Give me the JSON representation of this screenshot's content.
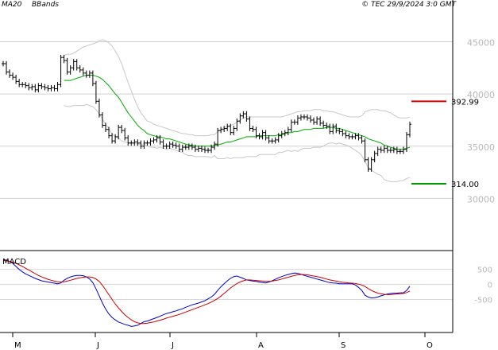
{
  "header": {
    "ma_label": "MA20",
    "bb_label": "BBands",
    "copyright": "© TEC 29/9/2024 3:0 GMT"
  },
  "chart_data": [
    {
      "type": "line",
      "subtype": "ohlc-bar-price-chart",
      "xlabel": "",
      "ylabel": "",
      "ylim": [
        25000,
        49000
      ],
      "y_ticks": [
        "30000",
        "35000",
        "40000",
        "45000"
      ],
      "x_ticks": [
        "M",
        "J",
        "J",
        "A",
        "S",
        "O"
      ],
      "grid": true,
      "horizontal_levels": [
        {
          "label": "392.99",
          "value": 39299,
          "color": "#cc0000"
        },
        {
          "label": "314.00",
          "value": 31400,
          "color": "#009900"
        }
      ],
      "x": [
        0,
        1,
        2,
        3,
        4,
        5,
        6,
        7,
        8,
        9,
        10,
        11,
        12,
        13,
        14,
        15,
        16,
        17,
        18,
        19,
        20,
        21,
        22,
        23,
        24,
        25,
        26,
        27,
        28,
        29,
        30,
        31,
        32,
        33,
        34,
        35,
        36,
        37,
        38,
        39,
        40,
        41,
        42,
        43,
        44,
        45,
        46,
        47,
        48,
        49,
        50,
        51,
        52,
        53,
        54,
        55,
        56,
        57,
        58,
        59,
        60,
        61,
        62,
        63,
        64,
        65,
        66,
        67,
        68,
        69,
        70,
        71,
        72,
        73,
        74,
        75,
        76,
        77,
        78,
        79,
        80,
        81,
        82,
        83,
        84,
        85,
        86,
        87,
        88,
        89,
        90,
        91,
        92,
        93,
        94,
        95,
        96,
        97,
        98,
        99,
        100,
        101,
        102,
        103,
        104,
        105,
        106,
        107,
        108,
        109,
        110,
        111,
        112,
        113,
        114,
        115,
        116,
        117,
        118,
        119,
        120,
        121,
        122,
        123,
        124,
        125,
        126,
        127
      ],
      "close": [
        42900,
        42100,
        41800,
        41600,
        41200,
        40900,
        40900,
        40800,
        40600,
        40700,
        40400,
        40800,
        40700,
        40600,
        40500,
        40600,
        40500,
        40900,
        43500,
        43200,
        42100,
        42500,
        43100,
        42500,
        42300,
        42000,
        41800,
        42000,
        41000,
        39300,
        38000,
        37000,
        36600,
        36000,
        35500,
        35900,
        36800,
        36500,
        35800,
        35300,
        35300,
        35400,
        35300,
        35000,
        35300,
        35300,
        35500,
        35600,
        35800,
        35400,
        35000,
        35000,
        35200,
        35100,
        35000,
        34700,
        34900,
        34900,
        35000,
        34900,
        34700,
        34800,
        34700,
        34600,
        34600,
        34900,
        35200,
        36500,
        36600,
        36700,
        36900,
        36300,
        36700,
        37400,
        37900,
        38100,
        37600,
        36700,
        36600,
        36000,
        35900,
        36300,
        35800,
        35500,
        35500,
        35600,
        36000,
        36200,
        36300,
        36600,
        37300,
        37300,
        37700,
        37800,
        37800,
        37700,
        37500,
        37300,
        37600,
        37200,
        37000,
        36900,
        36400,
        36900,
        36500,
        36400,
        36200,
        36000,
        35900,
        35900,
        36000,
        35800,
        35500,
        33700,
        32800,
        33700,
        34300,
        34700,
        34600,
        34800,
        34600,
        34600,
        34700,
        34500,
        34500,
        34700,
        36100,
        37100
      ],
      "series": [
        {
          "name": "MA20",
          "color": "#00aa00",
          "values": [
            null,
            null,
            null,
            null,
            null,
            null,
            null,
            null,
            null,
            null,
            null,
            null,
            null,
            null,
            null,
            null,
            null,
            null,
            null,
            41300,
            41300,
            41300,
            41400,
            41500,
            41600,
            41700,
            41800,
            41800,
            41800,
            41700,
            41600,
            41400,
            41100,
            40800,
            40400,
            40000,
            39700,
            39200,
            38700,
            38200,
            37800,
            37400,
            37000,
            36700,
            36500,
            36200,
            36100,
            36000,
            35900,
            35900,
            35800,
            35700,
            35700,
            35600,
            35500,
            35400,
            35300,
            35200,
            35100,
            35100,
            35000,
            35000,
            35000,
            35000,
            35000,
            35000,
            35100,
            35100,
            35200,
            35300,
            35400,
            35400,
            35500,
            35600,
            35700,
            35800,
            35900,
            35900,
            35900,
            35900,
            36000,
            36000,
            36000,
            36000,
            36000,
            36000,
            36100,
            36100,
            36200,
            36300,
            36300,
            36400,
            36400,
            36500,
            36600,
            36600,
            36600,
            36700,
            36700,
            36700,
            36700,
            36800,
            36800,
            36800,
            36700,
            36700,
            36600,
            36500,
            36400,
            36300,
            36200,
            36100,
            36000,
            35900,
            35700,
            35600,
            35500,
            35400,
            35300,
            35100,
            35000,
            34900,
            34800,
            34700,
            34700,
            34700,
            34800,
            34900
          ]
        },
        {
          "name": "BBands",
          "color": "#c8c8c8",
          "values": [
            null,
            null,
            null,
            null,
            null,
            null,
            null,
            null,
            null,
            null,
            null,
            null,
            null,
            null,
            null,
            null,
            null,
            null,
            null,
            43700,
            43800,
            43800,
            43900,
            44100,
            44300,
            44500,
            44600,
            44700,
            44800,
            44900,
            45100,
            45200,
            45100,
            44900,
            44600,
            44100,
            43600,
            42900,
            42000,
            41100,
            40300,
            39500,
            38800,
            38200,
            37800,
            37400,
            37300,
            37100,
            37000,
            36900,
            36800,
            36700,
            36600,
            36500,
            36400,
            36300,
            36200,
            36200,
            36100,
            36100,
            36000,
            36000,
            36000,
            36000,
            36000,
            36100,
            36100,
            36400,
            36600,
            36800,
            36900,
            37000,
            37100,
            37300,
            37500,
            37700,
            37800,
            37800,
            37800,
            37800,
            37800,
            37800,
            37800,
            37800,
            37800,
            37800,
            37800,
            37800,
            37900,
            38000,
            38100,
            38200,
            38300,
            38300,
            38400,
            38400,
            38400,
            38500,
            38500,
            38500,
            38400,
            38400,
            38300,
            38300,
            38200,
            38100,
            38000,
            37900,
            37800,
            37800,
            37800,
            37800,
            37900,
            38300,
            38400,
            38500,
            38500,
            38500,
            38400,
            38400,
            38300,
            38200,
            38000,
            37800,
            37700,
            37700,
            37700,
            37800
          ]
        },
        {
          "name": "BBands",
          "color": "#c8c8c8",
          "values": [
            null,
            null,
            null,
            null,
            null,
            null,
            null,
            null,
            null,
            null,
            null,
            null,
            null,
            null,
            null,
            null,
            null,
            null,
            null,
            38900,
            38800,
            38800,
            38900,
            38900,
            38900,
            38900,
            39000,
            38900,
            38800,
            38500,
            38100,
            37600,
            37100,
            36700,
            36200,
            35900,
            35800,
            35500,
            35400,
            35300,
            35300,
            35300,
            35200,
            35200,
            35200,
            35000,
            34900,
            34900,
            34800,
            34900,
            34800,
            34700,
            34800,
            34700,
            34600,
            34500,
            34400,
            34200,
            34100,
            34100,
            34000,
            34000,
            34000,
            34000,
            34000,
            33900,
            34100,
            33800,
            33800,
            33800,
            33900,
            33800,
            33900,
            33900,
            33900,
            33900,
            34000,
            34000,
            34000,
            34000,
            34200,
            34200,
            34200,
            34200,
            34200,
            34200,
            34400,
            34400,
            34500,
            34600,
            34500,
            34600,
            34500,
            34700,
            34800,
            34800,
            34800,
            34900,
            34900,
            34900,
            35000,
            35200,
            35300,
            35300,
            35200,
            35300,
            35200,
            35100,
            35000,
            34800,
            34600,
            34400,
            34100,
            33500,
            33000,
            32700,
            32500,
            32300,
            32200,
            31800,
            31700,
            31600,
            31600,
            31600,
            31700,
            31700,
            31900,
            32000
          ]
        }
      ]
    },
    {
      "type": "line",
      "title": "MACD",
      "xlabel": "",
      "ylabel": "",
      "ylim": [
        -1600,
        1100
      ],
      "y_ticks": [
        "-500",
        "0",
        "500"
      ],
      "x_ticks": [
        "M",
        "J",
        "J",
        "A",
        "S",
        "O"
      ],
      "x": [
        0,
        1,
        2,
        3,
        4,
        5,
        6,
        7,
        8,
        9,
        10,
        11,
        12,
        13,
        14,
        15,
        16,
        17,
        18,
        19,
        20,
        21,
        22,
        23,
        24,
        25,
        26,
        27,
        28,
        29,
        30,
        31,
        32,
        33,
        34,
        35,
        36,
        37,
        38,
        39,
        40,
        41,
        42,
        43,
        44,
        45,
        46,
        47,
        48,
        49,
        50,
        51,
        52,
        53,
        54,
        55,
        56,
        57,
        58,
        59,
        60,
        61,
        62,
        63,
        64,
        65,
        66,
        67,
        68,
        69,
        70,
        71,
        72,
        73,
        74,
        75,
        76,
        77,
        78,
        79,
        80,
        81,
        82,
        83,
        84,
        85,
        86,
        87,
        88,
        89,
        90,
        91,
        92,
        93,
        94,
        95,
        96,
        97,
        98,
        99,
        100,
        101,
        102,
        103,
        104,
        105,
        106,
        107,
        108,
        109,
        110,
        111,
        112,
        113,
        114,
        115,
        116,
        117,
        118,
        119,
        120,
        121,
        122,
        123,
        124,
        125,
        126,
        127
      ],
      "series": [
        {
          "name": "",
          "color": "#0000cc",
          "values": [
            820,
            810,
            760,
            700,
            600,
            500,
            420,
            350,
            300,
            250,
            200,
            160,
            120,
            100,
            80,
            60,
            40,
            20,
            50,
            140,
            200,
            250,
            280,
            300,
            300,
            290,
            250,
            180,
            60,
            -150,
            -380,
            -620,
            -820,
            -980,
            -1100,
            -1180,
            -1250,
            -1290,
            -1330,
            -1360,
            -1400,
            -1380,
            -1360,
            -1300,
            -1240,
            -1220,
            -1180,
            -1140,
            -1100,
            -1060,
            -1010,
            -970,
            -940,
            -910,
            -880,
            -840,
            -810,
            -760,
            -720,
            -680,
            -650,
            -620,
            -580,
            -540,
            -480,
            -420,
            -330,
            -200,
            -80,
            20,
            120,
            200,
            260,
            280,
            240,
            200,
            150,
            130,
            110,
            100,
            80,
            60,
            50,
            80,
            120,
            170,
            220,
            260,
            300,
            330,
            360,
            380,
            370,
            340,
            300,
            270,
            240,
            210,
            180,
            150,
            120,
            90,
            60,
            50,
            40,
            20,
            20,
            20,
            20,
            20,
            -20,
            -100,
            -200,
            -360,
            -420,
            -450,
            -440,
            -420,
            -380,
            -350,
            -320,
            -300,
            -290,
            -290,
            -280,
            -280,
            -200,
            -60
          ]
        },
        {
          "name": "",
          "color": "#cc0000",
          "values": [
            800,
            790,
            770,
            740,
            700,
            650,
            600,
            540,
            480,
            420,
            360,
            300,
            250,
            210,
            170,
            140,
            110,
            90,
            80,
            90,
            110,
            140,
            170,
            200,
            220,
            240,
            250,
            250,
            230,
            180,
            100,
            -30,
            -180,
            -340,
            -500,
            -650,
            -780,
            -900,
            -1010,
            -1100,
            -1180,
            -1240,
            -1280,
            -1300,
            -1300,
            -1290,
            -1270,
            -1250,
            -1220,
            -1190,
            -1160,
            -1120,
            -1090,
            -1060,
            -1030,
            -1000,
            -960,
            -920,
            -880,
            -840,
            -800,
            -760,
            -720,
            -680,
            -640,
            -590,
            -530,
            -470,
            -390,
            -300,
            -210,
            -120,
            -40,
            30,
            80,
            120,
            150,
            150,
            140,
            130,
            120,
            110,
            100,
            100,
            110,
            130,
            150,
            180,
            210,
            240,
            270,
            300,
            320,
            330,
            330,
            320,
            300,
            280,
            260,
            240,
            210,
            180,
            150,
            130,
            110,
            90,
            70,
            60,
            50,
            40,
            30,
            10,
            -20,
            -70,
            -140,
            -200,
            -250,
            -290,
            -310,
            -330,
            -340,
            -340,
            -330,
            -320,
            -310,
            -300,
            -270,
            -220
          ]
        }
      ]
    }
  ]
}
